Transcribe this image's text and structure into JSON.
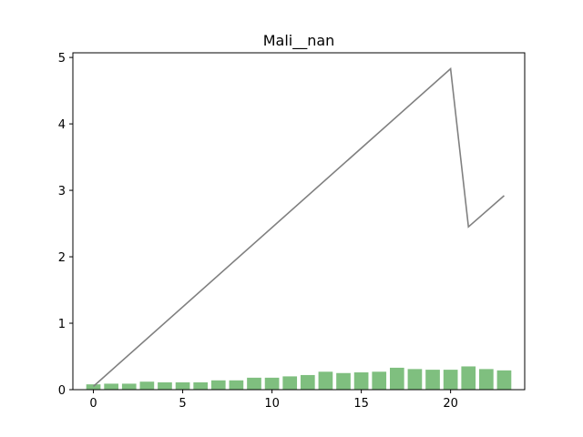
{
  "chart_data": {
    "type": "bar",
    "title": "Mali__nan",
    "xlabel": "",
    "ylabel": "",
    "xlim": [
      -1.15,
      24.15
    ],
    "ylim": [
      0,
      5.07
    ],
    "x_ticks": [
      0,
      5,
      10,
      15,
      20
    ],
    "y_ticks": [
      0,
      1,
      2,
      3,
      4,
      5
    ],
    "grid": false,
    "legend": "none",
    "bar_color": "#7fbf7f",
    "line_color": "#808080",
    "series": [
      {
        "type": "bar",
        "x": [
          0,
          1,
          2,
          3,
          4,
          5,
          6,
          7,
          8,
          9,
          10,
          11,
          12,
          13,
          14,
          15,
          16,
          17,
          18,
          19,
          20,
          21,
          22,
          23
        ],
        "values": [
          0.08,
          0.09,
          0.09,
          0.12,
          0.11,
          0.11,
          0.11,
          0.14,
          0.14,
          0.18,
          0.18,
          0.2,
          0.22,
          0.27,
          0.25,
          0.26,
          0.27,
          0.33,
          0.31,
          0.3,
          0.3,
          0.35,
          0.31,
          0.29
        ]
      },
      {
        "type": "line",
        "x": [
          0,
          20,
          21,
          23
        ],
        "values": [
          0.05,
          4.83,
          2.45,
          2.92
        ]
      }
    ]
  }
}
